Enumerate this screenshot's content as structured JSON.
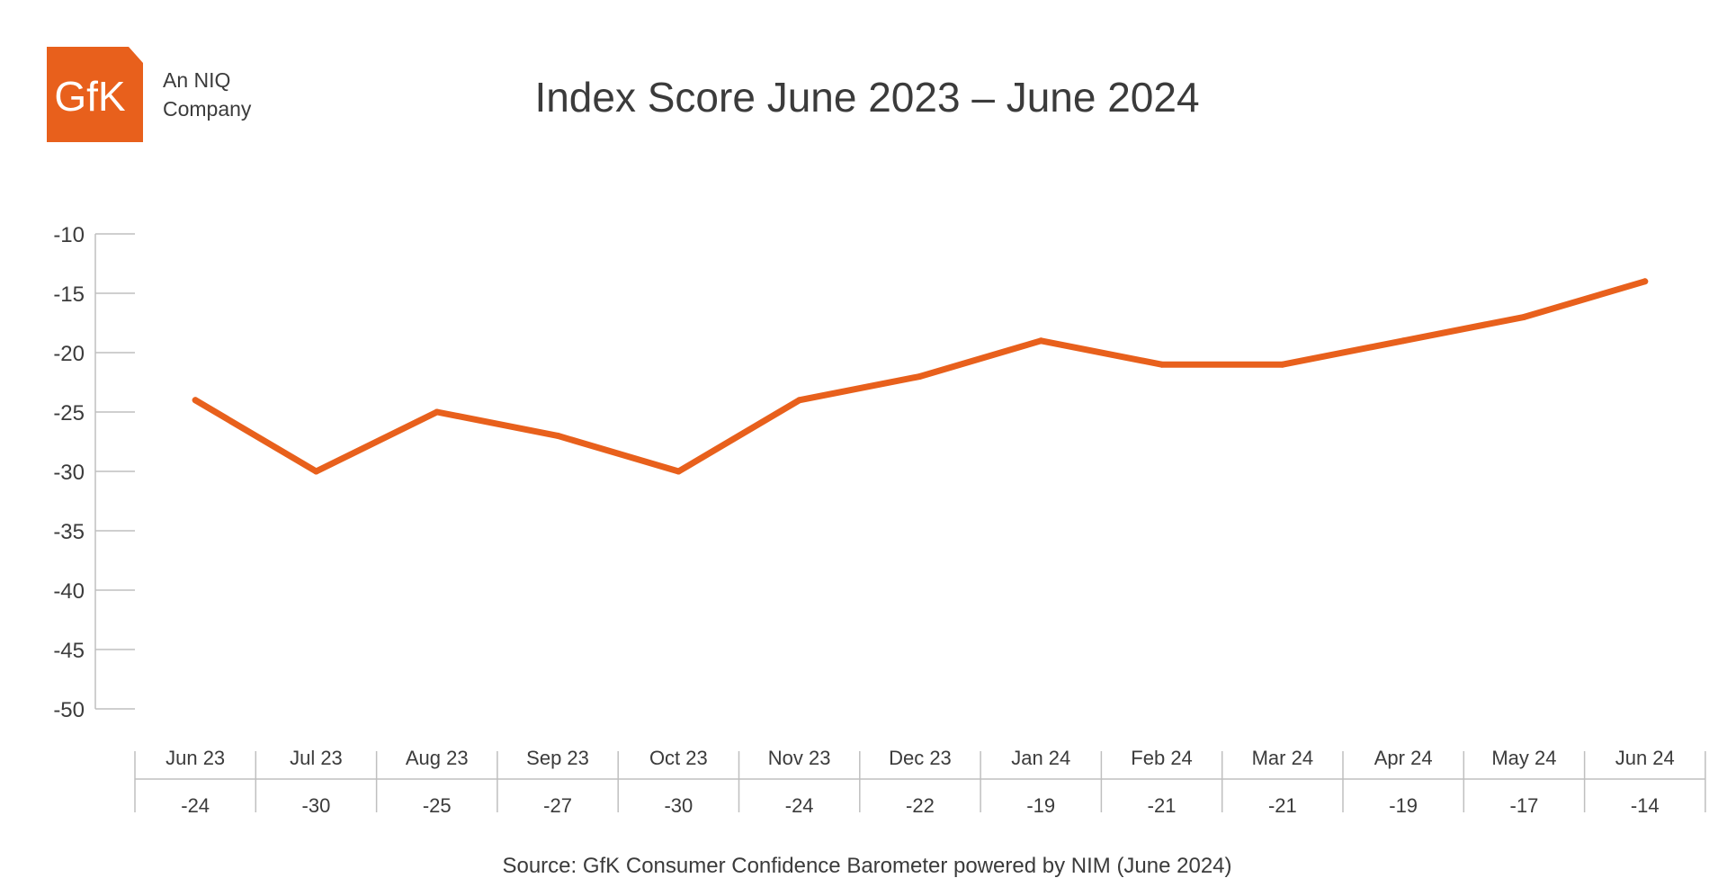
{
  "logo": {
    "text": "GfK",
    "tagline_line1": "An NIQ",
    "tagline_line2": "Company"
  },
  "colors": {
    "brand_orange": "#e8601c",
    "axis": "#bfbfbf",
    "text": "#3b3b3b"
  },
  "chart_data": {
    "type": "line",
    "title": "Index Score June 2023 – June 2024",
    "xlabel": "",
    "ylabel": "",
    "ylim": [
      -50,
      -10
    ],
    "yticks": [
      -10,
      -15,
      -20,
      -25,
      -30,
      -35,
      -40,
      -45,
      -50
    ],
    "yticklabels": [
      "-10",
      "-15",
      "-20",
      "-25",
      "-30",
      "-35",
      "-40",
      "-45",
      "-50"
    ],
    "categories": [
      "Jun 23",
      "Jul 23",
      "Aug 23",
      "Sep 23",
      "Oct 23",
      "Nov 23",
      "Dec 23",
      "Jan 24",
      "Feb 24",
      "Mar 24",
      "Apr 24",
      "May 24",
      "Jun 24"
    ],
    "values": [
      -24,
      -30,
      -25,
      -27,
      -30,
      -24,
      -22,
      -19,
      -21,
      -21,
      -19,
      -17,
      -14
    ],
    "value_labels": [
      "-24",
      "-30",
      "-25",
      "-27",
      "-30",
      "-24",
      "-22",
      "-19",
      "-21",
      "-21",
      "-19",
      "-17",
      "-14"
    ],
    "grid": false,
    "legend": "none",
    "source": "Source: GfK Consumer Confidence Barometer powered by NIM (June 2024)"
  }
}
